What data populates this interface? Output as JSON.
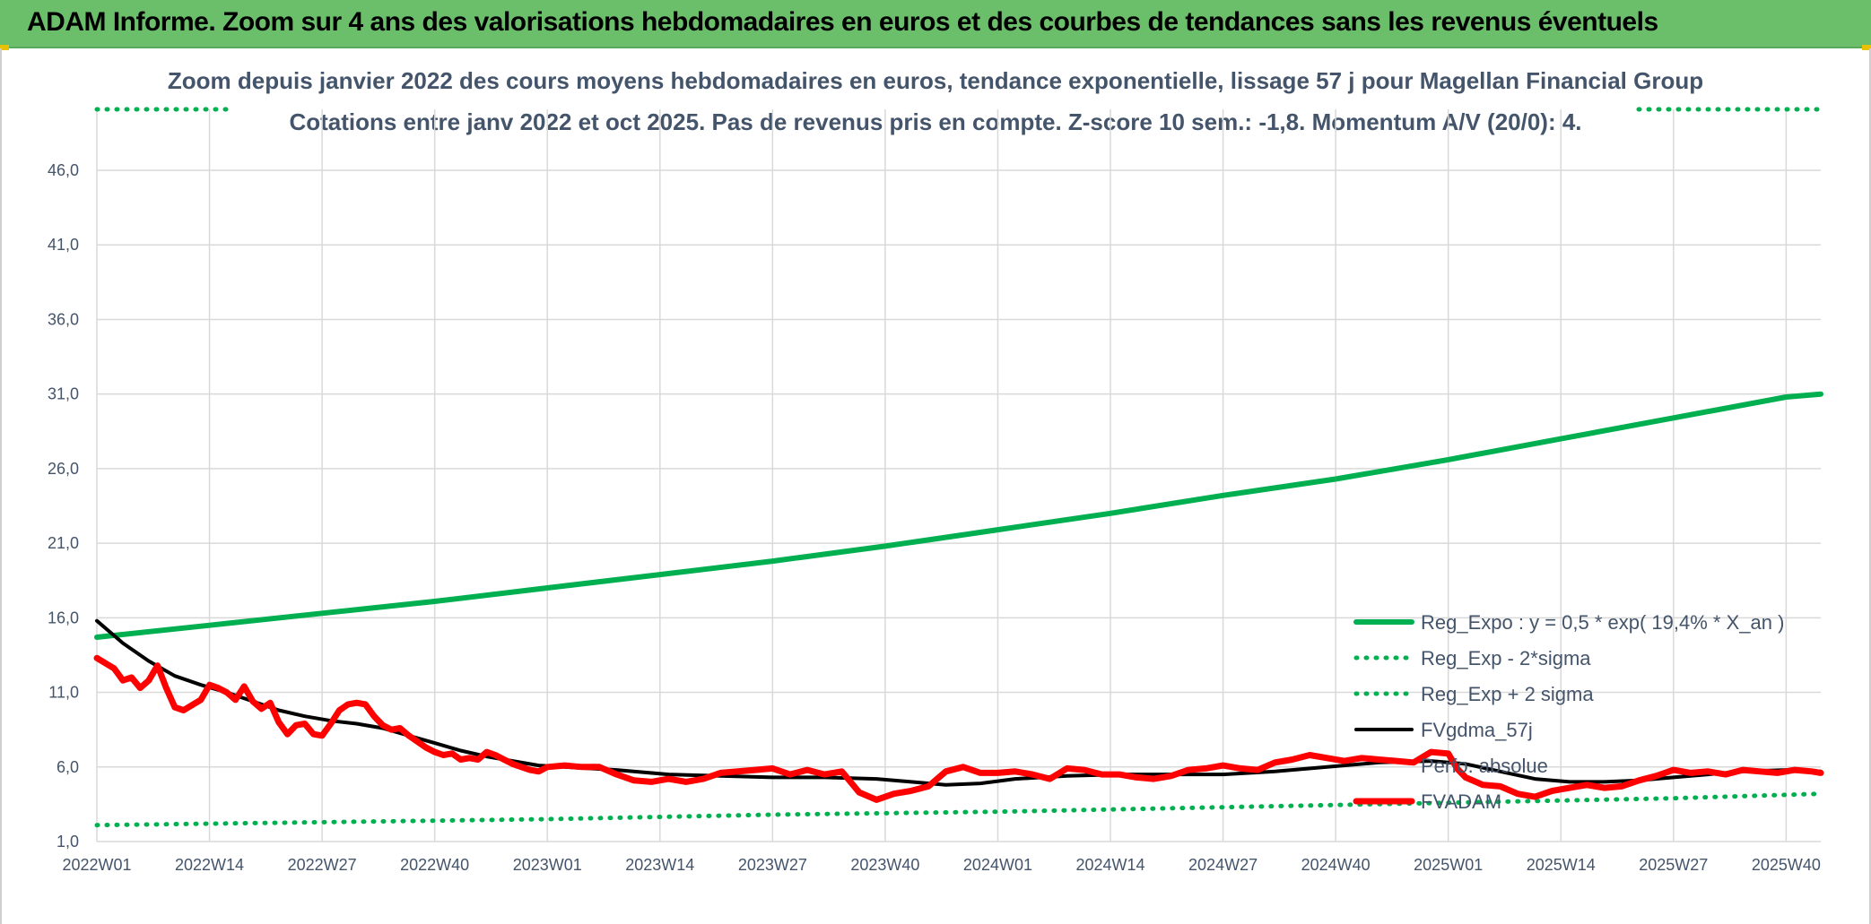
{
  "header": {
    "title": "ADAM Informe. Zoom sur 4 ans des valorisations hebdomadaires en euros et des courbes de tendances sans les revenus éventuels"
  },
  "chart_data": {
    "type": "line",
    "title": "Zoom depuis janvier 2022 des cours moyens hebdomadaires en euros, tendance exponentielle, lissage 57 j pour Magellan Financial Group",
    "subtitle": "Cotations entre janv 2022 et oct 2025. Pas de revenus pris en compte. Z-score 10 sem.: -1,8. Momentum A/V (20/0): 4.",
    "xlabel": "",
    "ylabel": "",
    "ylim": [
      1,
      48.5
    ],
    "yticks": [
      "46,0",
      "41,0",
      "36,0",
      "31,0",
      "26,0",
      "21,0",
      "16,0",
      "11,0",
      "6,0",
      "1,0"
    ],
    "ytick_values": [
      46,
      41,
      36,
      31,
      26,
      21,
      16,
      11,
      6,
      1
    ],
    "categories": [
      "2022W01",
      "2022W14",
      "2022W27",
      "2022W40",
      "2023W01",
      "2023W14",
      "2023W27",
      "2023W40",
      "2024W01",
      "2024W14",
      "2024W27",
      "2024W40",
      "2025W01",
      "2025W14",
      "2025W27",
      "2025W40"
    ],
    "x_weeks": [
      0,
      13,
      26,
      39,
      52,
      65,
      78,
      91,
      104,
      117,
      130,
      143,
      156,
      169,
      182,
      195
    ],
    "x_max_week": 199,
    "grid": true,
    "legend_position": "bottom-right",
    "colors": {
      "green": "#00b050",
      "black": "#000000",
      "red": "#ff0000",
      "grid": "#d9d9d9",
      "text": "#44546a"
    },
    "series": [
      {
        "name": "Reg_Expo : y = 0,5 * exp( 19,4% *  X_an )",
        "style": "solid-green",
        "x": [
          0,
          13,
          26,
          39,
          52,
          65,
          78,
          91,
          104,
          117,
          130,
          143,
          156,
          169,
          182,
          195,
          199
        ],
        "values": [
          14.7,
          15.5,
          16.3,
          17.1,
          18.0,
          18.9,
          19.8,
          20.8,
          21.9,
          23.0,
          24.2,
          25.3,
          26.6,
          28.0,
          29.4,
          30.8,
          31.0
        ]
      },
      {
        "name": "Reg_Exp - 2*sigma",
        "style": "dotted-green",
        "x": [
          0,
          26,
          52,
          78,
          104,
          130,
          156,
          182,
          199
        ],
        "values": [
          2.1,
          2.3,
          2.5,
          2.8,
          3.0,
          3.3,
          3.6,
          3.9,
          4.2
        ]
      },
      {
        "name": "Reg_Exp + 2 sigma",
        "style": "dotted-green-top",
        "x": [
          0,
          199
        ],
        "values": [
          48.5,
          48.5
        ]
      },
      {
        "name": "FVgdma_57j",
        "style": "solid-black",
        "x": [
          0,
          3,
          6,
          9,
          12,
          15,
          18,
          21,
          24,
          27,
          30,
          33,
          36,
          39,
          42,
          45,
          48,
          51,
          54,
          60,
          66,
          72,
          78,
          84,
          90,
          94,
          98,
          102,
          106,
          112,
          118,
          124,
          130,
          136,
          142,
          148,
          154,
          158,
          162,
          166,
          170,
          174,
          178,
          182,
          186,
          190,
          195,
          199
        ],
        "values": [
          15.8,
          14.3,
          13.1,
          12.1,
          11.5,
          11.0,
          10.4,
          9.8,
          9.4,
          9.1,
          8.9,
          8.6,
          8.1,
          7.6,
          7.1,
          6.7,
          6.4,
          6.1,
          6.0,
          5.8,
          5.5,
          5.4,
          5.3,
          5.3,
          5.2,
          5.0,
          4.8,
          4.9,
          5.2,
          5.4,
          5.5,
          5.5,
          5.5,
          5.7,
          6.0,
          6.3,
          6.4,
          6.2,
          5.7,
          5.2,
          5.0,
          5.0,
          5.1,
          5.3,
          5.5,
          5.7,
          5.8,
          5.7
        ]
      },
      {
        "name": "Perfo. absolue",
        "style": "hidden",
        "x": [],
        "values": []
      },
      {
        "name": "FVADAM",
        "style": "solid-red",
        "x": [
          0,
          2,
          3,
          4,
          5,
          6,
          7,
          8,
          9,
          10,
          12,
          13,
          14,
          15,
          16,
          17,
          18,
          19,
          20,
          21,
          22,
          23,
          24,
          25,
          26,
          27,
          28,
          29,
          30,
          31,
          32,
          33,
          34,
          35,
          36,
          37,
          38,
          39,
          40,
          41,
          42,
          43,
          44,
          45,
          46,
          47,
          48,
          49,
          50,
          51,
          52,
          54,
          56,
          58,
          60,
          62,
          64,
          66,
          68,
          70,
          72,
          74,
          76,
          78,
          80,
          82,
          84,
          86,
          88,
          90,
          92,
          94,
          96,
          98,
          100,
          102,
          104,
          106,
          108,
          110,
          112,
          114,
          116,
          118,
          120,
          122,
          124,
          126,
          128,
          130,
          132,
          134,
          136,
          138,
          140,
          142,
          144,
          146,
          148,
          150,
          152,
          154,
          156,
          157,
          158,
          160,
          162,
          164,
          166,
          168,
          170,
          172,
          174,
          176,
          178,
          180,
          182,
          184,
          186,
          188,
          190,
          192,
          194,
          196,
          198,
          199
        ],
        "values": [
          13.3,
          12.6,
          11.8,
          12.0,
          11.3,
          11.8,
          12.8,
          11.3,
          10.0,
          9.8,
          10.5,
          11.5,
          11.3,
          11.0,
          10.5,
          11.4,
          10.4,
          9.9,
          10.3,
          9.0,
          8.2,
          8.8,
          8.9,
          8.2,
          8.1,
          8.9,
          9.8,
          10.2,
          10.3,
          10.2,
          9.4,
          8.8,
          8.5,
          8.6,
          8.1,
          7.7,
          7.3,
          7.0,
          6.8,
          6.9,
          6.5,
          6.6,
          6.5,
          7.0,
          6.8,
          6.5,
          6.2,
          6.0,
          5.8,
          5.7,
          6.0,
          6.1,
          6.0,
          6.0,
          5.5,
          5.1,
          5.0,
          5.2,
          5.0,
          5.2,
          5.6,
          5.7,
          5.8,
          5.9,
          5.5,
          5.8,
          5.5,
          5.7,
          4.3,
          3.8,
          4.2,
          4.4,
          4.7,
          5.7,
          6.0,
          5.6,
          5.6,
          5.7,
          5.5,
          5.2,
          5.9,
          5.8,
          5.5,
          5.5,
          5.3,
          5.2,
          5.4,
          5.8,
          5.9,
          6.1,
          5.9,
          5.8,
          6.3,
          6.5,
          6.8,
          6.6,
          6.4,
          6.6,
          6.5,
          6.4,
          6.3,
          7.0,
          6.9,
          5.9,
          5.3,
          4.8,
          4.7,
          4.2,
          4.0,
          4.4,
          4.6,
          4.8,
          4.6,
          4.7,
          5.1,
          5.4,
          5.8,
          5.6,
          5.7,
          5.5,
          5.8,
          5.7,
          5.6,
          5.8,
          5.7,
          5.6
        ]
      }
    ]
  }
}
